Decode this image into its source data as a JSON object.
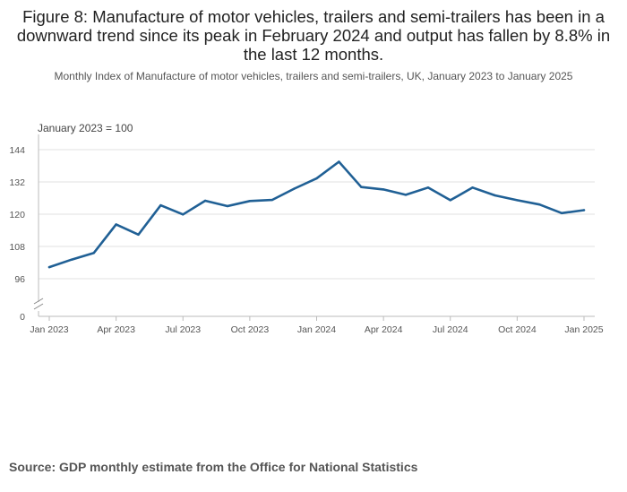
{
  "title": "Figure 8: Manufacture of motor vehicles, trailers and semi-trailers has been in a downward trend since its peak in February 2024 and output has fallen by 8.8% in the last 12 months.",
  "subtitle": "Monthly Index of Manufacture of motor vehicles, trailers and semi-trailers, UK, January 2023 to January 2025",
  "source": "Source: GDP monthly estimate from the Office for National Statistics",
  "chart_data": {
    "type": "line",
    "index_note": "January 2023 = 100",
    "x": [
      "Jan 2023",
      "Feb 2023",
      "Mar 2023",
      "Apr 2023",
      "May 2023",
      "Jun 2023",
      "Jul 2023",
      "Aug 2023",
      "Sep 2023",
      "Oct 2023",
      "Nov 2023",
      "Dec 2023",
      "Jan 2024",
      "Feb 2024",
      "Mar 2024",
      "Apr 2024",
      "May 2024",
      "Jun 2024",
      "Jul 2024",
      "Aug 2024",
      "Sep 2024",
      "Oct 2024",
      "Nov 2024",
      "Dec 2024",
      "Jan 2025"
    ],
    "x_tick_labels": [
      "Jan 2023",
      "Apr 2023",
      "Jul 2023",
      "Oct 2023",
      "Jan 2024",
      "Apr 2024",
      "Jul 2024",
      "Oct 2024",
      "Jan 2025"
    ],
    "x_tick_every": 3,
    "y_ticks": [
      0,
      96,
      108,
      120,
      132,
      144
    ],
    "ylim": [
      92,
      150
    ],
    "axis_break": true,
    "series": [
      {
        "name": "Manufacture of motor vehicles, trailers and semi-trailers",
        "color": "#206095",
        "values": [
          100.3,
          103.1,
          105.6,
          116.2,
          112.4,
          123.3,
          119.9,
          125.0,
          123.0,
          124.9,
          125.3,
          129.5,
          133.3,
          139.5,
          130.1,
          129.2,
          127.2,
          129.9,
          125.2,
          129.9,
          127.0,
          125.2,
          123.6,
          120.4,
          121.5
        ]
      }
    ],
    "gridlines": true
  }
}
